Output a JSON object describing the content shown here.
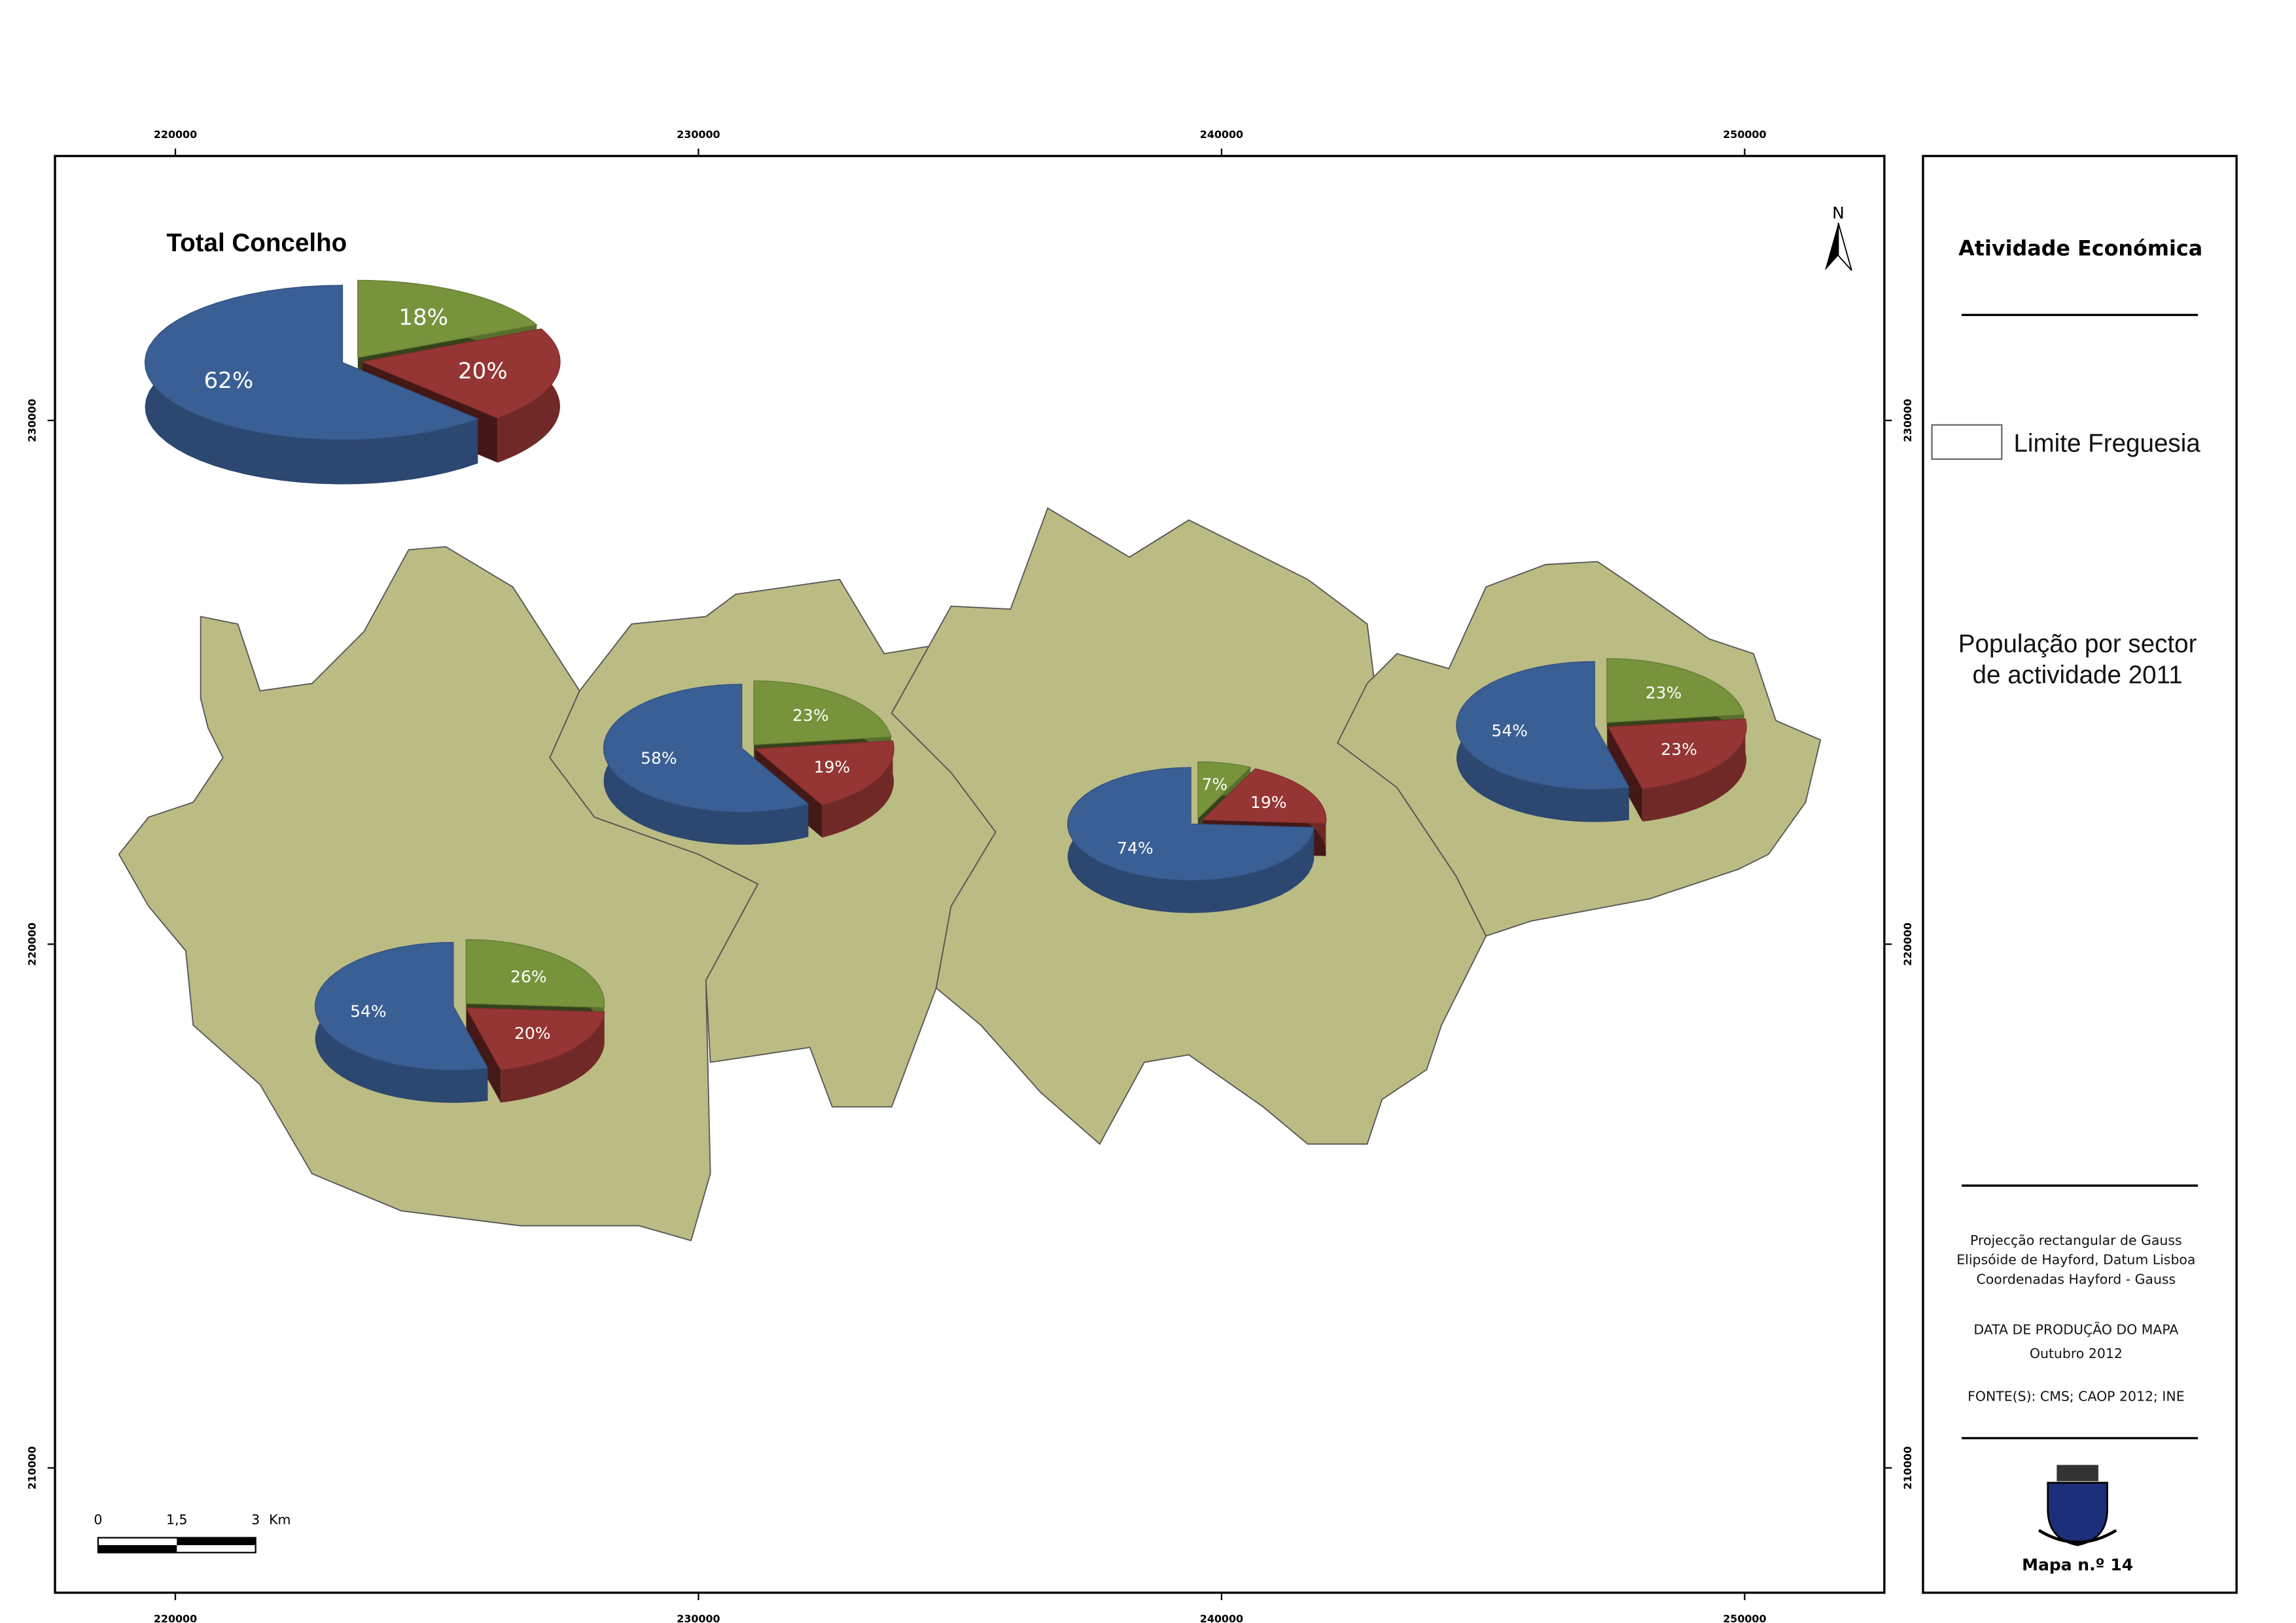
{
  "map": {
    "x_ticks": [
      220000,
      230000,
      240000,
      250000
    ],
    "y_ticks": [
      230000,
      220000,
      210000
    ],
    "north": "N",
    "scale_bar": {
      "labels": [
        "0",
        "1,5",
        "3"
      ],
      "unit": "Km"
    },
    "colors": [
      "#77933c",
      "#963634",
      "#3a5f95"
    ],
    "pies": [
      {
        "title": "Total Concelho",
        "values": [
          18,
          20,
          62
        ],
        "value_labels": [
          "18%",
          "20%",
          "62%"
        ]
      },
      {
        "values": [
          23,
          19,
          58
        ],
        "value_labels": [
          "23%",
          "19%",
          "58%"
        ]
      },
      {
        "values": [
          7,
          19,
          74
        ],
        "value_labels": [
          "7%",
          "19%",
          "74%"
        ]
      },
      {
        "values": [
          23,
          23,
          54
        ],
        "value_labels": [
          "23%",
          "23%",
          "54%"
        ]
      },
      {
        "values": [
          26,
          20,
          54
        ],
        "value_labels": [
          "26%",
          "20%",
          "54%"
        ]
      }
    ]
  },
  "legend": {
    "title": "Atividade Económica",
    "item": "Limite Freguesia",
    "subtitle": [
      "População por sector",
      "de actividade 2011"
    ],
    "notes": [
      "Projecção rectangular de Gauss",
      "Elipsóide de Hayford, Datum Lisboa",
      "Coordenadas Hayford - Gauss"
    ],
    "production": [
      "DATA DE PRODUÇÃO DO MAPA",
      "Outubro 2012"
    ],
    "sources": "FONTE(S): CMS; CAOP 2012; INE",
    "map_number": "Mapa n.º 14"
  }
}
